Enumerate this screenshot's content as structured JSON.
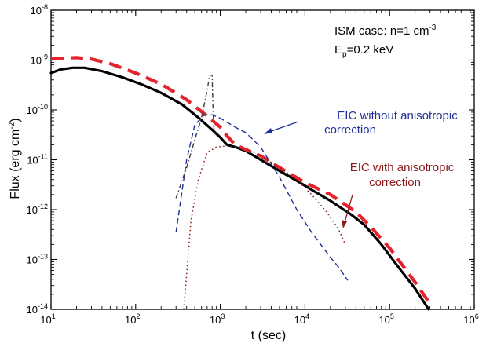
{
  "chart_data": {
    "type": "line",
    "title": "",
    "xlabel": "t (sec)",
    "ylabel_parts": [
      "Flux (erg cm",
      "-2",
      ")"
    ],
    "x_scale": "log",
    "y_scale": "log",
    "xlim": [
      10,
      1000000
    ],
    "ylim": [
      1e-14,
      1e-08
    ],
    "x_ticks": [
      {
        "value": 10,
        "base": "10",
        "exp": "1"
      },
      {
        "value": 100,
        "base": "10",
        "exp": "2"
      },
      {
        "value": 1000,
        "base": "10",
        "exp": "3"
      },
      {
        "value": 10000,
        "base": "10",
        "exp": "4"
      },
      {
        "value": 100000,
        "base": "10",
        "exp": "5"
      },
      {
        "value": 1000000,
        "base": "10",
        "exp": "6"
      }
    ],
    "y_ticks": [
      {
        "value": 1e-14,
        "base": "10",
        "exp": "-14"
      },
      {
        "value": 1e-13,
        "base": "10",
        "exp": "-13"
      },
      {
        "value": 1e-12,
        "base": "10",
        "exp": "-12"
      },
      {
        "value": 1e-11,
        "base": "10",
        "exp": "-11"
      },
      {
        "value": 1e-10,
        "base": "10",
        "exp": "-10"
      },
      {
        "value": 1e-09,
        "base": "10",
        "exp": "-9"
      },
      {
        "value": 1e-08,
        "base": "10",
        "exp": "-8"
      }
    ],
    "annotations": {
      "ism_line1_main": "ISM case: n=1 cm",
      "ism_line1_sup": "-3",
      "ism_line2_main": "E",
      "ism_line2_sub": "p",
      "ism_line2_rest": "=0.2 keV",
      "eic_without_line1": "EIC without anisotropic",
      "eic_without_line2": "correction",
      "eic_with_line1": "EIC with anisotropic",
      "eic_with_line2": "correction"
    },
    "series": [
      {
        "color": "#000000",
        "style": "solid",
        "points": [
          [
            10,
            5.5e-10
          ],
          [
            13,
            6.5e-10
          ],
          [
            18,
            7e-10
          ],
          [
            25,
            7e-10
          ],
          [
            40,
            6e-10
          ],
          [
            70,
            4.5e-10
          ],
          [
            120,
            3.2e-10
          ],
          [
            200,
            2.2e-10
          ],
          [
            350,
            1.3e-10
          ],
          [
            550,
            7e-11
          ],
          [
            800,
            4e-11
          ],
          [
            1000,
            2.8e-11
          ],
          [
            1200,
            2e-11
          ],
          [
            1500,
            1.8e-11
          ],
          [
            2000,
            1.5e-11
          ],
          [
            3000,
            1e-11
          ],
          [
            5000,
            6e-12
          ],
          [
            8000,
            3.8e-12
          ],
          [
            12000,
            2.5e-12
          ],
          [
            20000,
            1.5e-12
          ],
          [
            35000,
            8e-13
          ],
          [
            50000,
            5e-13
          ],
          [
            80000,
            2e-13
          ],
          [
            120000,
            8e-14
          ],
          [
            200000,
            2.6e-14
          ],
          [
            290000,
            1e-14
          ]
        ]
      },
      {
        "color": "#e4232c",
        "style": "dashed-thick",
        "points": [
          [
            10,
            1.05e-09
          ],
          [
            15,
            1.1e-09
          ],
          [
            20,
            1.12e-09
          ],
          [
            30,
            1.05e-09
          ],
          [
            50,
            8.5e-10
          ],
          [
            100,
            5.5e-10
          ],
          [
            200,
            3.3e-10
          ],
          [
            400,
            1.6e-10
          ],
          [
            700,
            7.5e-11
          ],
          [
            1000,
            4.5e-11
          ],
          [
            1200,
            3e-11
          ],
          [
            1500,
            2e-11
          ],
          [
            2000,
            1.6e-11
          ],
          [
            3000,
            1.2e-11
          ],
          [
            5000,
            7e-12
          ],
          [
            10000,
            3.5e-12
          ],
          [
            20000,
            2e-12
          ],
          [
            40000,
            9e-13
          ],
          [
            60000,
            4.5e-13
          ],
          [
            100000,
            1.7e-13
          ],
          [
            200000,
            3.5e-14
          ],
          [
            300000,
            1.3e-14
          ]
        ]
      },
      {
        "color": "#1f2f9a",
        "style": "dashed",
        "points": [
          [
            300,
            3.5e-13
          ],
          [
            400,
            1e-11
          ],
          [
            500,
            5e-11
          ],
          [
            650,
            8e-11
          ],
          [
            800,
            8e-11
          ],
          [
            1000,
            6.8e-11
          ],
          [
            1500,
            4.5e-11
          ],
          [
            2000,
            3.5e-11
          ],
          [
            3000,
            1.8e-11
          ],
          [
            5000,
            4.5e-12
          ],
          [
            8000,
            1e-12
          ],
          [
            12000,
            3.5e-13
          ],
          [
            20000,
            1.1e-13
          ],
          [
            25000,
            7e-14
          ],
          [
            32000,
            3.8e-14
          ]
        ]
      },
      {
        "color": "#8b1a1a",
        "style": "dotted",
        "points": [
          [
            370,
            1e-14
          ],
          [
            450,
            6e-13
          ],
          [
            550,
            4e-12
          ],
          [
            700,
            1.4e-11
          ],
          [
            900,
            1.8e-11
          ],
          [
            1200,
            1.9e-11
          ],
          [
            1600,
            1.8e-11
          ],
          [
            2000,
            1.7e-11
          ],
          [
            3000,
            1.2e-11
          ],
          [
            5000,
            7e-12
          ],
          [
            8000,
            4e-12
          ],
          [
            12000,
            2e-12
          ],
          [
            18000,
            9e-13
          ],
          [
            25000,
            4e-13
          ],
          [
            30000,
            2e-13
          ]
        ]
      },
      {
        "color": "#3a3a3a",
        "style": "dashdot",
        "points": [
          [
            300,
            1.7e-12
          ],
          [
            400,
            7e-12
          ],
          [
            500,
            2.5e-11
          ],
          [
            600,
            7e-11
          ],
          [
            700,
            2.5e-10
          ],
          [
            750,
            5e-10
          ],
          [
            800,
            5e-10
          ],
          [
            820,
            1e-10
          ],
          [
            850,
            3e-11
          ]
        ]
      }
    ]
  }
}
